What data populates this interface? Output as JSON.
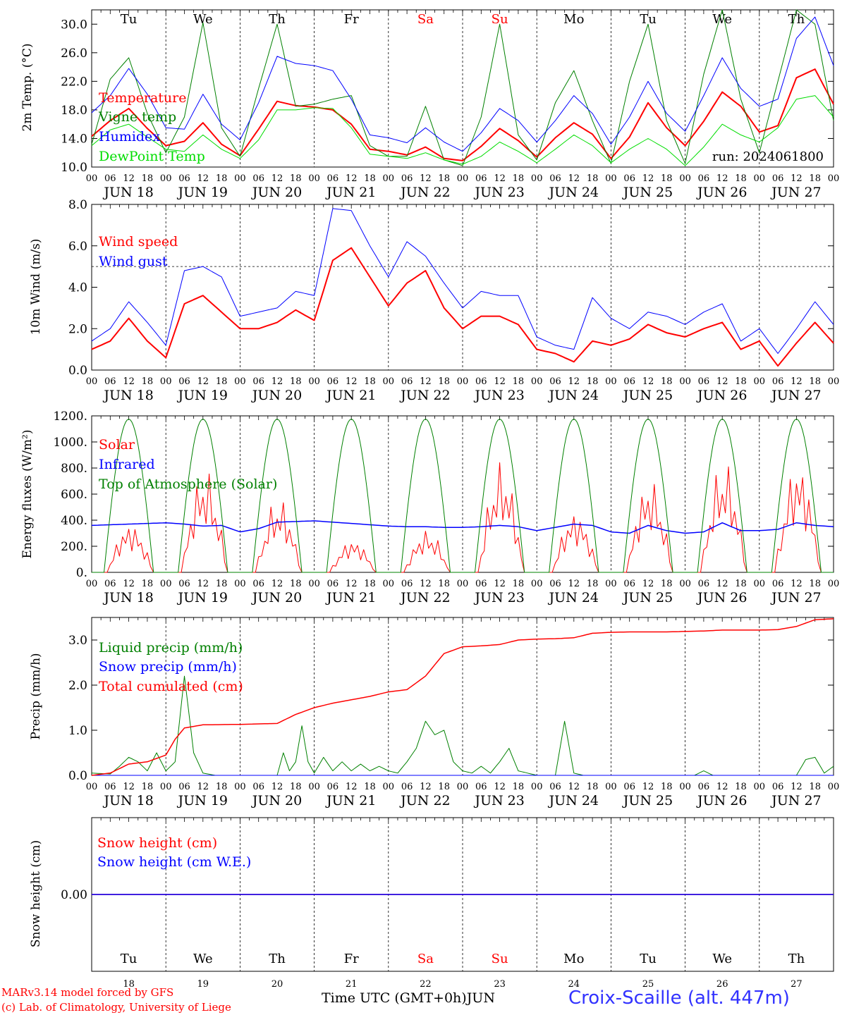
{
  "run_label": "run: 2024061800",
  "month_label": "JUN",
  "hour_ticks": [
    "00",
    "06",
    "12",
    "18"
  ],
  "days": [
    {
      "abbr": "Tu",
      "date": "18",
      "weekend": false
    },
    {
      "abbr": "We",
      "date": "19",
      "weekend": false
    },
    {
      "abbr": "Th",
      "date": "20",
      "weekend": false
    },
    {
      "abbr": "Fr",
      "date": "21",
      "weekend": false
    },
    {
      "abbr": "Sa",
      "date": "22",
      "weekend": true
    },
    {
      "abbr": "Su",
      "date": "23",
      "weekend": true
    },
    {
      "abbr": "Mo",
      "date": "24",
      "weekend": false
    },
    {
      "abbr": "Tu",
      "date": "25",
      "weekend": false
    },
    {
      "abbr": "We",
      "date": "26",
      "weekend": false
    },
    {
      "abbr": "Th",
      "date": "27",
      "weekend": false
    }
  ],
  "footer": {
    "model": "MARv3.14 model forced by GFS",
    "copyright": "(c) Lab. of Climatology, University of Liege",
    "time_axis": "Time UTC (GMT+0h)JUN",
    "station": "Croix-Scaille (alt. 447m)"
  },
  "colors": {
    "red": "#ff0000",
    "green": "#008000",
    "blue": "#0000ff",
    "lightgreen": "#00dd00",
    "purple": "#800080",
    "station": "#3232ff"
  },
  "chart_data": [
    {
      "type": "line",
      "ylabel": "2m Temp. (°C)",
      "ylim": [
        10,
        32
      ],
      "yticks": [
        "10.0",
        "14.0",
        "18.0",
        "22.0",
        "26.0",
        "30.0"
      ],
      "x_unit": "hours since 2024-06-18 00 UTC",
      "x": [
        0,
        6,
        12,
        18,
        24,
        30,
        36,
        42,
        48,
        54,
        60,
        66,
        72,
        78,
        84,
        90,
        96,
        102,
        108,
        114,
        120,
        126,
        132,
        138,
        144,
        150,
        156,
        162,
        168,
        174,
        180,
        186,
        192,
        198,
        204,
        210,
        216,
        222,
        228,
        234,
        240
      ],
      "series": [
        {
          "name": "Temperature",
          "color": "red",
          "width": 2,
          "values": [
            14.3,
            16.5,
            18.2,
            15.4,
            13.0,
            13.6,
            16.2,
            13.2,
            11.6,
            15.3,
            19.2,
            18.6,
            18.4,
            18.0,
            16.0,
            12.5,
            12.2,
            11.7,
            12.8,
            11.2,
            10.9,
            12.9,
            15.4,
            13.7,
            11.4,
            14.1,
            16.2,
            14.6,
            11.2,
            14.2,
            19.0,
            15.5,
            13.0,
            16.4,
            20.5,
            18.5,
            14.9,
            15.8,
            22.5,
            23.7,
            18.8
          ]
        },
        {
          "name": "Vigne temp",
          "color": "green",
          "width": 1,
          "values": [
            13.2,
            22.3,
            25.3,
            17.5,
            12.0,
            17.0,
            30.2,
            15.5,
            11.5,
            21.0,
            30.0,
            18.5,
            18.8,
            19.5,
            20.0,
            13.0,
            11.5,
            11.5,
            18.5,
            11.0,
            10.2,
            17.0,
            30.0,
            14.5,
            11.0,
            19.0,
            23.5,
            16.5,
            10.5,
            22.0,
            30.0,
            16.5,
            10.5,
            23.0,
            32.0,
            19.5,
            12.0,
            22.0,
            32.0,
            30.0,
            16.5
          ]
        },
        {
          "name": "Humidex",
          "color": "blue",
          "width": 1,
          "values": [
            17.6,
            20.0,
            23.8,
            20.2,
            15.5,
            15.3,
            20.2,
            16.0,
            13.8,
            19.0,
            25.5,
            24.5,
            24.2,
            23.5,
            19.5,
            14.5,
            14.1,
            13.4,
            15.5,
            13.5,
            12.2,
            14.8,
            18.2,
            16.5,
            13.5,
            16.5,
            20.0,
            17.5,
            13.2,
            17.0,
            22.0,
            17.5,
            15.0,
            20.0,
            25.3,
            21.0,
            18.5,
            19.5,
            28.0,
            31.0,
            24.2
          ]
        },
        {
          "name": "DewPoint Temp",
          "color": "lightgreen",
          "width": 1,
          "values": [
            13.0,
            15.2,
            16.0,
            14.2,
            12.5,
            12.2,
            14.5,
            12.5,
            11.2,
            13.8,
            18.0,
            18.0,
            18.3,
            18.2,
            15.5,
            11.8,
            11.5,
            11.2,
            12.0,
            11.0,
            10.4,
            11.5,
            13.5,
            12.2,
            10.6,
            12.5,
            14.5,
            13.0,
            10.6,
            12.5,
            14.0,
            12.5,
            10.2,
            12.8,
            16.0,
            14.5,
            13.5,
            15.5,
            19.5,
            20.0,
            17.0
          ]
        }
      ]
    },
    {
      "type": "line",
      "ylabel": "10m Wind (m/s)",
      "ylim": [
        0,
        8
      ],
      "yticks": [
        "0.0",
        "2.0",
        "4.0",
        "6.0",
        "8.0"
      ],
      "ref_line": 5.0,
      "x_unit": "hours since 2024-06-18 00 UTC",
      "x": [
        0,
        6,
        12,
        18,
        24,
        30,
        36,
        42,
        48,
        54,
        60,
        66,
        72,
        78,
        84,
        90,
        96,
        102,
        108,
        114,
        120,
        126,
        132,
        138,
        144,
        150,
        156,
        162,
        168,
        174,
        180,
        186,
        192,
        198,
        204,
        210,
        216,
        222,
        228,
        234,
        240
      ],
      "series": [
        {
          "name": "Wind speed",
          "color": "red",
          "width": 2,
          "values": [
            1.0,
            1.4,
            2.5,
            1.4,
            0.6,
            3.2,
            3.6,
            2.8,
            2.0,
            2.0,
            2.3,
            2.9,
            2.4,
            5.3,
            5.9,
            4.5,
            3.1,
            4.2,
            4.8,
            3.0,
            2.0,
            2.6,
            2.6,
            2.2,
            1.0,
            0.8,
            0.4,
            1.4,
            1.2,
            1.5,
            2.2,
            1.8,
            1.6,
            2.0,
            2.3,
            1.0,
            1.4,
            0.2,
            1.3,
            2.3,
            1.3
          ]
        },
        {
          "name": "Wind gust",
          "color": "blue",
          "width": 1,
          "values": [
            1.4,
            2.0,
            3.3,
            2.3,
            1.2,
            4.8,
            5.0,
            4.5,
            2.6,
            2.8,
            3.0,
            3.8,
            3.6,
            7.8,
            7.7,
            6.0,
            4.5,
            6.2,
            5.5,
            4.2,
            3.0,
            3.8,
            3.6,
            3.6,
            1.6,
            1.2,
            1.0,
            3.5,
            2.5,
            2.0,
            2.8,
            2.6,
            2.2,
            2.8,
            3.2,
            1.4,
            2.0,
            0.8,
            2.0,
            3.3,
            2.2
          ]
        }
      ]
    },
    {
      "type": "line",
      "ylabel": "Energy fluxes (W/m²)",
      "ylim": [
        0,
        1200
      ],
      "yticks": [
        "0.",
        "200.",
        "400.",
        "600.",
        "800.",
        "1000.",
        "1200."
      ],
      "x_unit": "hours since 2024-06-18 00 UTC",
      "x": [
        0,
        6,
        12,
        18,
        24,
        30,
        36,
        42,
        48,
        54,
        60,
        66,
        72,
        78,
        84,
        90,
        96,
        102,
        108,
        114,
        120,
        126,
        132,
        138,
        144,
        150,
        156,
        162,
        168,
        174,
        180,
        186,
        192,
        198,
        204,
        210,
        216,
        222,
        228,
        234,
        240
      ],
      "series": [
        {
          "name": "Solar",
          "color": "red",
          "width": 1,
          "peaks": [
            390,
            800,
            580,
            260,
            330,
            850,
            480,
            730,
            860,
            870
          ]
        },
        {
          "name": "Infrared",
          "color": "blue",
          "width": 1.5,
          "values": [
            360,
            365,
            370,
            375,
            380,
            370,
            355,
            360,
            310,
            335,
            385,
            390,
            395,
            385,
            375,
            365,
            355,
            350,
            350,
            345,
            345,
            350,
            360,
            350,
            320,
            345,
            370,
            360,
            310,
            300,
            360,
            320,
            300,
            310,
            380,
            320,
            320,
            330,
            380,
            360,
            350
          ]
        },
        {
          "name": "Top of Atmosphere (Solar)",
          "color": "green",
          "width": 1,
          "peak": 1175
        }
      ]
    },
    {
      "type": "line",
      "ylabel": "Precip (mm/h)",
      "ylim": [
        0,
        3.5
      ],
      "yticks": [
        "0.0",
        "1.0",
        "2.0",
        "3.0"
      ],
      "x_unit": "hours since 2024-06-18 00 UTC",
      "series": [
        {
          "name": "Liquid precip (mm/h)",
          "color": "green",
          "width": 1,
          "x": [
            0,
            6,
            9,
            12,
            15,
            18,
            21,
            24,
            27,
            30,
            33,
            36,
            40,
            60,
            62,
            64,
            66,
            68,
            70,
            72,
            75,
            78,
            81,
            84,
            87,
            90,
            93,
            96,
            99,
            102,
            105,
            108,
            111,
            114,
            117,
            120,
            123,
            126,
            129,
            132,
            135,
            138,
            141,
            144,
            150,
            153,
            156,
            159,
            162,
            174,
            195,
            198,
            201,
            216,
            222,
            228,
            231,
            234,
            237,
            240
          ],
          "values": [
            0.05,
            0.03,
            0.2,
            0.4,
            0.3,
            0.1,
            0.5,
            0.1,
            0.3,
            2.2,
            0.5,
            0.05,
            0.0,
            0.0,
            0.5,
            0.1,
            0.3,
            1.1,
            0.3,
            0.05,
            0.4,
            0.1,
            0.3,
            0.1,
            0.25,
            0.1,
            0.2,
            0.1,
            0.05,
            0.3,
            0.6,
            1.2,
            0.9,
            1.0,
            0.3,
            0.1,
            0.05,
            0.2,
            0.05,
            0.3,
            0.6,
            0.1,
            0.05,
            0.0,
            0.0,
            1.2,
            0.05,
            0.0,
            0.0,
            0.0,
            0.0,
            0.1,
            0.0,
            0.0,
            0.0,
            0.0,
            0.35,
            0.4,
            0.05,
            0.2
          ]
        },
        {
          "name": "Snow precip (mm/h)",
          "color": "blue",
          "width": 1,
          "x": [
            0,
            240
          ],
          "values": [
            0,
            0
          ]
        },
        {
          "name": "Total cumulated (cm)",
          "color": "red",
          "width": 1.5,
          "x": [
            0,
            6,
            12,
            18,
            24,
            27,
            30,
            36,
            48,
            60,
            66,
            72,
            78,
            90,
            96,
            102,
            108,
            114,
            120,
            126,
            132,
            138,
            144,
            150,
            156,
            162,
            168,
            174,
            180,
            186,
            192,
            198,
            204,
            216,
            222,
            228,
            234,
            240
          ],
          "values": [
            0.0,
            0.05,
            0.25,
            0.3,
            0.45,
            0.8,
            1.05,
            1.12,
            1.13,
            1.15,
            1.35,
            1.5,
            1.6,
            1.75,
            1.85,
            1.9,
            2.2,
            2.7,
            2.85,
            2.87,
            2.9,
            3.0,
            3.02,
            3.03,
            3.05,
            3.15,
            3.17,
            3.18,
            3.18,
            3.18,
            3.19,
            3.2,
            3.22,
            3.22,
            3.23,
            3.3,
            3.45,
            3.47
          ]
        }
      ]
    },
    {
      "type": "line",
      "ylabel": "Snow height (cm)",
      "ylim": [
        -1,
        1
      ],
      "yticks": [
        "0.00"
      ],
      "x_unit": "hours since 2024-06-18 00 UTC",
      "x": [
        0,
        240
      ],
      "series": [
        {
          "name": "Snow height (cm)",
          "color": "red",
          "width": 1.5,
          "values": [
            0,
            0
          ]
        },
        {
          "name": "Snow height (cm W.E.)",
          "color": "blue",
          "width": 1.5,
          "values": [
            0,
            0
          ]
        }
      ]
    }
  ]
}
